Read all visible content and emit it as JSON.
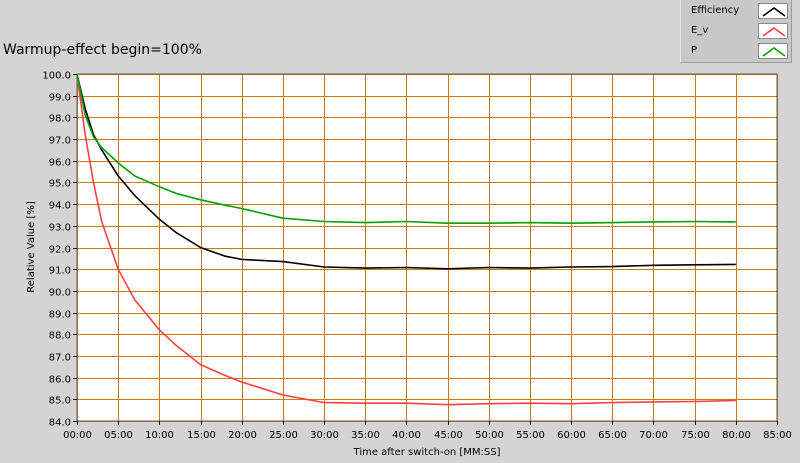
{
  "chart_data": {
    "type": "line",
    "title": "Warmup-effect begin=100%",
    "xlabel": "Time after switch-on [MM:SS]",
    "ylabel": "Relative Value [%]",
    "xlim": [
      0,
      85
    ],
    "ylim": [
      84,
      100
    ],
    "x_ticks": [
      "00:00",
      "05:00",
      "10:00",
      "15:00",
      "20:00",
      "25:00",
      "30:00",
      "35:00",
      "40:00",
      "45:00",
      "50:00",
      "55:00",
      "60:00",
      "65:00",
      "70:00",
      "75:00",
      "80:00",
      "85:00"
    ],
    "y_ticks": [
      "100.0",
      "99.0",
      "98.0",
      "97.0",
      "96.0",
      "95.0",
      "94.0",
      "93.0",
      "92.0",
      "91.0",
      "90.0",
      "89.0",
      "88.0",
      "87.0",
      "86.0",
      "85.0",
      "84.0"
    ],
    "grid": true,
    "legend_position": "top-right",
    "colors": {
      "plot_background": "#ffffff",
      "grid": "#cc7a00",
      "page_background": "#d4d4d4"
    },
    "x": [
      0,
      1,
      2,
      3,
      5,
      7,
      10,
      12,
      15,
      18,
      20,
      25,
      30,
      35,
      40,
      45,
      50,
      55,
      60,
      65,
      70,
      75,
      80
    ],
    "series": [
      {
        "name": "Efficiency",
        "color": "#000000",
        "values": [
          100.0,
          98.4,
          97.2,
          96.5,
          95.3,
          94.4,
          93.3,
          92.7,
          92.0,
          91.6,
          91.45,
          91.35,
          91.1,
          91.05,
          91.08,
          91.02,
          91.08,
          91.05,
          91.1,
          91.12,
          91.18,
          91.2,
          91.22
        ]
      },
      {
        "name": "E_v",
        "color": "#ff4040",
        "values": [
          100.0,
          97.2,
          95.0,
          93.2,
          91.0,
          89.6,
          88.2,
          87.5,
          86.6,
          86.1,
          85.8,
          85.2,
          84.85,
          84.82,
          84.82,
          84.75,
          84.8,
          84.82,
          84.8,
          84.85,
          84.88,
          84.9,
          84.95
        ]
      },
      {
        "name": "P",
        "color": "#00a000",
        "values": [
          100.0,
          98.1,
          97.1,
          96.6,
          95.9,
          95.3,
          94.8,
          94.5,
          94.2,
          93.95,
          93.8,
          93.35,
          93.2,
          93.15,
          93.2,
          93.12,
          93.12,
          93.15,
          93.12,
          93.15,
          93.18,
          93.2,
          93.18
        ]
      }
    ]
  },
  "legend": {
    "items": [
      "Efficiency",
      "E_v",
      "P"
    ]
  }
}
